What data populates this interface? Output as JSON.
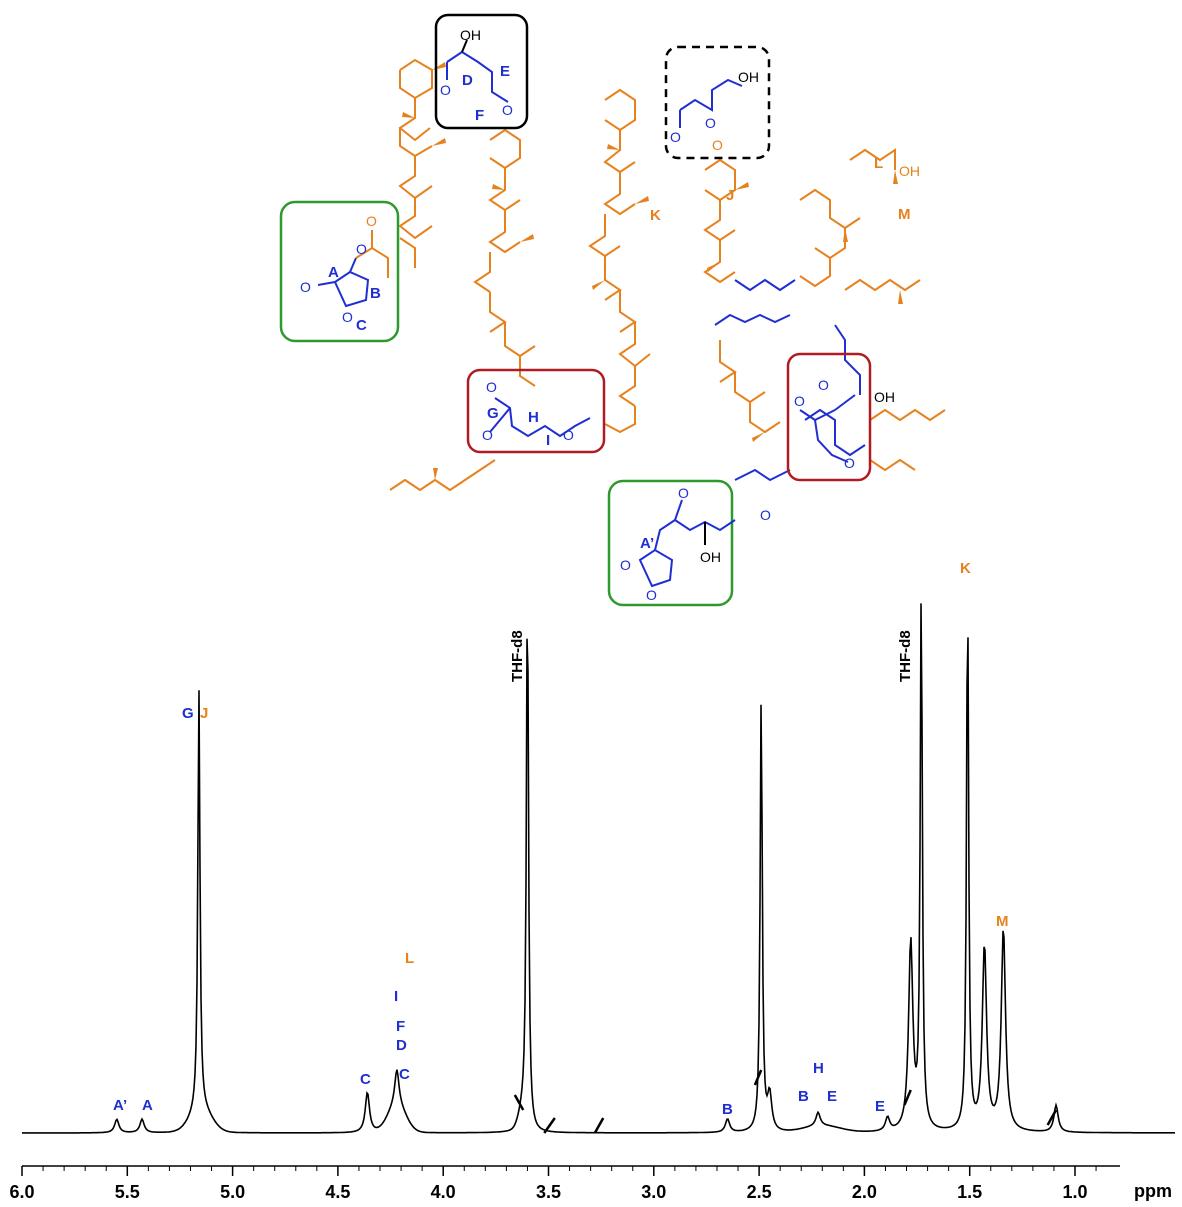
{
  "colors": {
    "pla": "#E6821E",
    "core": "#1F2FD0",
    "black": "#000000",
    "box_green": "#2E9A2E",
    "box_red": "#B01C22",
    "box_black": "#000000",
    "box_dashed": "#000000"
  },
  "structure": {
    "atoms": {
      "O": "O",
      "OH": "OH"
    },
    "box_lactone_left": {
      "A": "A",
      "B": "B",
      "C": "C"
    },
    "box_ester_top": {
      "D": "D",
      "E": "E",
      "F": "F"
    },
    "box_dashed": {},
    "box_red_left": {
      "G": "G",
      "H": "H",
      "I": "I"
    },
    "box_lactone_bottom": {
      "A_prime": "A’"
    },
    "pla_labels": {
      "J": "J",
      "K": "K",
      "L": "L",
      "M": "M"
    }
  },
  "spectrum": {
    "axis": {
      "ticks": [
        "6.0",
        "5.5",
        "5.0",
        "4.5",
        "4.0",
        "3.5",
        "3.0",
        "2.5",
        "2.0",
        "1.5",
        "1.0"
      ],
      "unit": "ppm"
    },
    "solvent_labels": {
      "thf_1": "THF-d8",
      "thf_2": "THF-d8"
    },
    "peak_labels": {
      "a_prime": "A’",
      "a": "A",
      "g": "G",
      "j": "J",
      "c1": "C",
      "l": "L",
      "i": "I",
      "f": "F",
      "d": "D",
      "c2": "C",
      "b1": "B",
      "b2": "B",
      "h": "H",
      "e1": "E",
      "e2": "E",
      "k": "K",
      "m": "M"
    }
  },
  "chart_data": {
    "type": "line",
    "xlabel": "ppm",
    "xlim": [
      6.0,
      0.85
    ],
    "reversed_x": true,
    "peaks": [
      {
        "ppm": 5.55,
        "rel": 0.03
      },
      {
        "ppm": 5.43,
        "rel": 0.03
      },
      {
        "ppm": 5.16,
        "rel": 0.94
      },
      {
        "ppm": 4.36,
        "rel": 0.09
      },
      {
        "ppm": 4.22,
        "rel": 0.08
      },
      {
        "ppm": 3.6,
        "rel": 1.2
      },
      {
        "ppm": 2.65,
        "rel": 0.03
      },
      {
        "ppm": 2.49,
        "rel": 0.97
      },
      {
        "ppm": 2.45,
        "rel": 0.08
      },
      {
        "ppm": 2.22,
        "rel": 0.03
      },
      {
        "ppm": 1.89,
        "rel": 0.03
      },
      {
        "ppm": 1.78,
        "rel": 0.42
      },
      {
        "ppm": 1.73,
        "rel": 1.2
      },
      {
        "ppm": 1.51,
        "rel": 1.2
      },
      {
        "ppm": 1.43,
        "rel": 0.41
      },
      {
        "ppm": 1.34,
        "rel": 0.45
      },
      {
        "ppm": 1.09,
        "rel": 0.06
      }
    ]
  }
}
